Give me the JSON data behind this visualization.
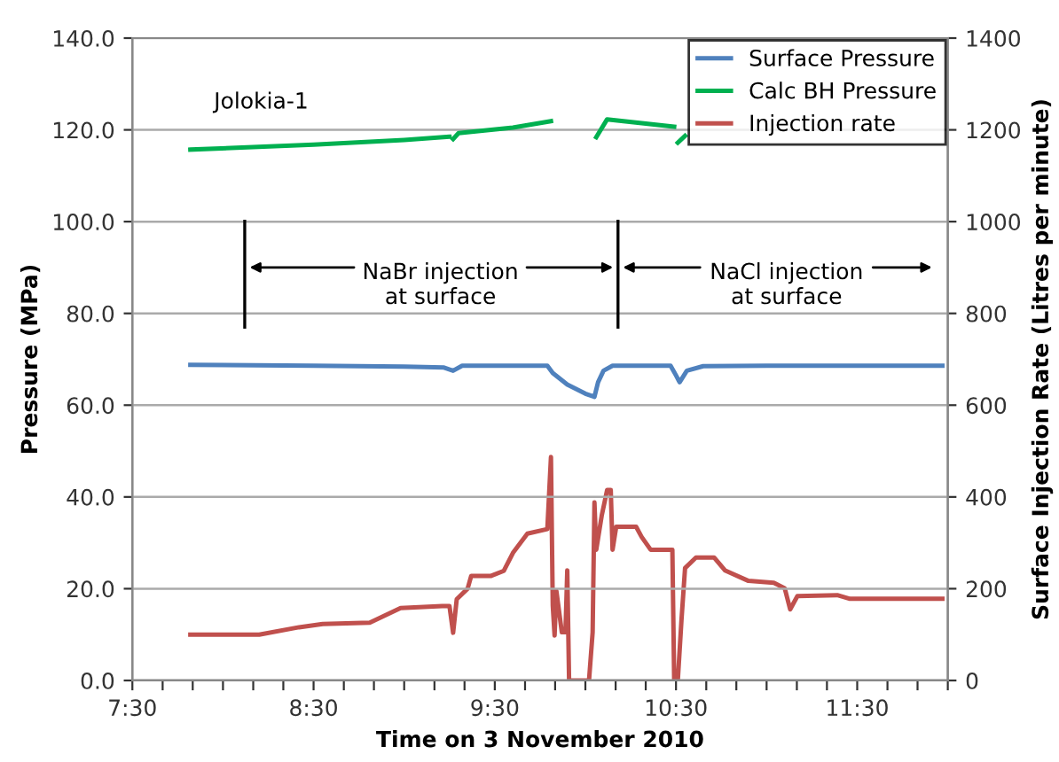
{
  "chart_data": {
    "type": "line",
    "xlabel": "Time on 3 November 2010",
    "ylabel": "Pressure (MPa)",
    "y2label": "Surface Injection Rate (Litres per minute)",
    "xlim": [
      7.5,
      12.0
    ],
    "xticks": [
      {
        "value": 7.5,
        "label": "7:30"
      },
      {
        "value": 7.667,
        "label": null
      },
      {
        "value": 7.833,
        "label": null
      },
      {
        "value": 8.0,
        "label": null
      },
      {
        "value": 8.167,
        "label": null
      },
      {
        "value": 8.333,
        "label": null
      },
      {
        "value": 8.5,
        "label": "8:30"
      },
      {
        "value": 8.667,
        "label": null
      },
      {
        "value": 8.833,
        "label": null
      },
      {
        "value": 9.0,
        "label": null
      },
      {
        "value": 9.167,
        "label": null
      },
      {
        "value": 9.333,
        "label": null
      },
      {
        "value": 9.5,
        "label": "9:30"
      },
      {
        "value": 9.667,
        "label": null
      },
      {
        "value": 9.833,
        "label": null
      },
      {
        "value": 10.0,
        "label": null
      },
      {
        "value": 10.167,
        "label": null
      },
      {
        "value": 10.333,
        "label": null
      },
      {
        "value": 10.5,
        "label": "10:30"
      },
      {
        "value": 10.667,
        "label": null
      },
      {
        "value": 10.833,
        "label": null
      },
      {
        "value": 11.0,
        "label": null
      },
      {
        "value": 11.167,
        "label": null
      },
      {
        "value": 11.333,
        "label": null
      },
      {
        "value": 11.5,
        "label": "11:30"
      },
      {
        "value": 11.667,
        "label": null
      },
      {
        "value": 11.833,
        "label": null
      },
      {
        "value": 12.0,
        "label": null
      }
    ],
    "ylim": [
      0,
      140
    ],
    "yticks": [
      {
        "value": 0,
        "label": "0.0"
      },
      {
        "value": 20,
        "label": "20.0"
      },
      {
        "value": 40,
        "label": "40.0"
      },
      {
        "value": 60,
        "label": "60.0"
      },
      {
        "value": 80,
        "label": "80.0"
      },
      {
        "value": 100,
        "label": "100.0"
      },
      {
        "value": 120,
        "label": "120.0"
      },
      {
        "value": 140,
        "label": "140.0"
      }
    ],
    "y2lim": [
      0,
      1400
    ],
    "y2ticks": [
      0,
      200,
      400,
      600,
      800,
      1000,
      1200,
      1400
    ],
    "grid": "y",
    "legend": "top right",
    "marker": "none",
    "line_style": "solid",
    "series": [
      {
        "name": "Surface Pressure",
        "color": "#4f81bd",
        "x": [
          7.82,
          8.5,
          9.0,
          9.22,
          9.27,
          9.32,
          9.6,
          9.79,
          9.82,
          9.9,
          10.0,
          10.05,
          10.07,
          10.1,
          10.15,
          10.47,
          10.5,
          10.52,
          10.56,
          10.65,
          11.0,
          11.5,
          11.97
        ],
        "values": [
          68.8,
          68.6,
          68.4,
          68.2,
          67.5,
          68.6,
          68.6,
          68.6,
          67.0,
          64.5,
          62.5,
          61.8,
          65.0,
          67.5,
          68.6,
          68.6,
          66.5,
          65.0,
          67.5,
          68.5,
          68.6,
          68.6,
          68.6
        ]
      },
      {
        "name": "Calc BH Pressure",
        "color": "#00b050",
        "x": [
          7.82,
          8.5,
          9.0,
          9.25,
          9.26,
          9.27,
          9.3,
          9.6,
          9.81,
          9.9,
          10.06,
          10.12,
          10.3,
          10.49,
          10.5,
          10.51,
          10.55
        ],
        "values": [
          115.7,
          116.8,
          117.8,
          118.5,
          null,
          118.0,
          119.3,
          120.5,
          121.9,
          null,
          118.4,
          122.3,
          121.5,
          120.7,
          null,
          117.2,
          118.7
        ]
      },
      {
        "name": "Injection rate",
        "color": "#c0504d",
        "axis": "y2",
        "x": [
          7.82,
          8.2,
          8.42,
          8.55,
          8.81,
          8.98,
          9.21,
          9.25,
          9.27,
          9.29,
          9.35,
          9.37,
          9.48,
          9.55,
          9.6,
          9.68,
          9.79,
          9.81,
          9.82,
          9.83,
          9.84,
          9.87,
          9.89,
          9.9,
          9.91,
          10.02,
          10.04,
          10.05,
          10.06,
          10.09,
          10.12,
          10.14,
          10.15,
          10.17,
          10.28,
          10.31,
          10.36,
          10.48,
          10.49,
          10.51,
          10.53,
          10.55,
          10.61,
          10.71,
          10.77,
          10.9,
          11.04,
          11.1,
          11.13,
          11.17,
          11.39,
          11.46,
          11.97
        ],
        "values": [
          100,
          100,
          116,
          123,
          126,
          158,
          162,
          162,
          104,
          177,
          200,
          228,
          228,
          239,
          278,
          320,
          330,
          487,
          163,
          98,
          195,
          105,
          105,
          240,
          0,
          0,
          105,
          388,
          285,
          359,
          415,
          415,
          285,
          335,
          335,
          313,
          285,
          285,
          0,
          0,
          130,
          245,
          268,
          268,
          240,
          217,
          213,
          201,
          155,
          184,
          186,
          178,
          178
        ]
      }
    ],
    "ref_lines": [
      {
        "axis": "x",
        "value": 8.12,
        "color": "#000000"
      },
      {
        "axis": "x",
        "value": 10.18,
        "color": "#000000"
      }
    ],
    "annotations": [
      "Jolokia-1",
      "NaBr injection\nat surface",
      "NaCl injection\nat surface"
    ]
  }
}
